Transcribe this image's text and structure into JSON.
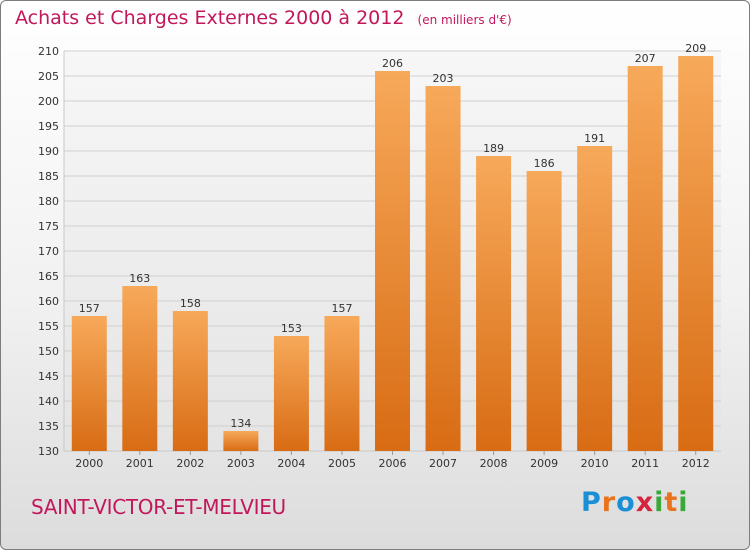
{
  "chart_data": {
    "type": "bar",
    "title": "Achats et Charges Externes 2000 à 2012",
    "subtitle": "(en milliers d'€)",
    "categories": [
      "2000",
      "2001",
      "2002",
      "2003",
      "2004",
      "2005",
      "2006",
      "2007",
      "2008",
      "2009",
      "2010",
      "2011",
      "2012"
    ],
    "values": [
      157,
      163,
      158,
      134,
      153,
      157,
      206,
      203,
      189,
      186,
      191,
      207,
      209
    ],
    "data_labels": [
      "157",
      "163",
      "158",
      "134",
      "153",
      "157",
      "206",
      "203",
      "189",
      "186",
      "191",
      "207",
      "209"
    ],
    "ylim": [
      130,
      210
    ],
    "yticks": [
      130,
      135,
      140,
      145,
      150,
      155,
      160,
      165,
      170,
      175,
      180,
      185,
      190,
      195,
      200,
      205,
      210
    ],
    "xlabel": "",
    "ylabel": "",
    "grid": true,
    "legend": "none",
    "bar_color": "#f0842a",
    "title_color": "#c2185b"
  },
  "location": "SAINT-VICTOR-ET-MELVIEU",
  "brand": {
    "name": "Proxiti",
    "letters": [
      "P",
      "r",
      "o",
      "x",
      "i",
      "t",
      "i"
    ],
    "letter_colors": [
      "#1b8fd6",
      "#e8731c",
      "#1b8fd6",
      "#d6243c",
      "#3aa93a",
      "#e8731c",
      "#3aa93a"
    ]
  }
}
